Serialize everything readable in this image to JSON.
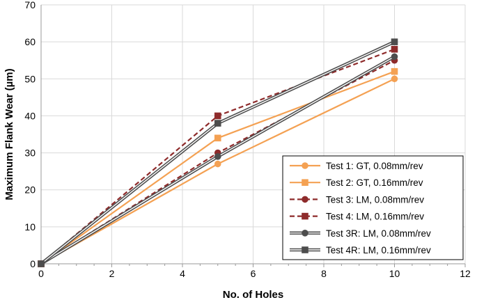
{
  "chart_data": {
    "type": "line",
    "title": "",
    "xlabel": "No. of Holes",
    "ylabel": "Maximum Flank Wear (µm)",
    "xlim": [
      0,
      12
    ],
    "ylim": [
      0,
      70
    ],
    "xticks": [
      "0",
      "2",
      "4",
      "6",
      "8",
      "10",
      "12"
    ],
    "yticks": [
      "0",
      "10",
      "20",
      "30",
      "40",
      "50",
      "60",
      "70"
    ],
    "grid": true,
    "legend_position": "bottom-right",
    "series": [
      {
        "name": "Test 1: GT, 0.08mm/rev",
        "x": [
          0,
          5,
          10
        ],
        "y": [
          0,
          27,
          50
        ],
        "color": "#F4A153",
        "marker": "circle",
        "style": "solid"
      },
      {
        "name": "Test 2: GT, 0.16mm/rev",
        "x": [
          0,
          5,
          10
        ],
        "y": [
          0,
          34,
          52
        ],
        "color": "#F4A153",
        "marker": "square",
        "style": "solid"
      },
      {
        "name": "Test 3: LM, 0.08mm/rev",
        "x": [
          0,
          5,
          10
        ],
        "y": [
          0,
          30,
          55
        ],
        "color": "#8E2B2B",
        "marker": "circle",
        "style": "dashed"
      },
      {
        "name": "Test 4: LM, 0.16mm/rev",
        "x": [
          0,
          5,
          10
        ],
        "y": [
          0,
          40,
          58
        ],
        "color": "#8E2B2B",
        "marker": "square",
        "style": "dashed"
      },
      {
        "name": "Test 3R: LM, 0.08mm/rev",
        "x": [
          0,
          5,
          10
        ],
        "y": [
          0,
          29,
          56
        ],
        "color": "#4D4D4D",
        "marker": "circle",
        "style": "double"
      },
      {
        "name": "Test 4R: LM, 0.16mm/rev",
        "x": [
          0,
          5,
          10
        ],
        "y": [
          0,
          38,
          60
        ],
        "color": "#4D4D4D",
        "marker": "square",
        "style": "double"
      }
    ]
  }
}
